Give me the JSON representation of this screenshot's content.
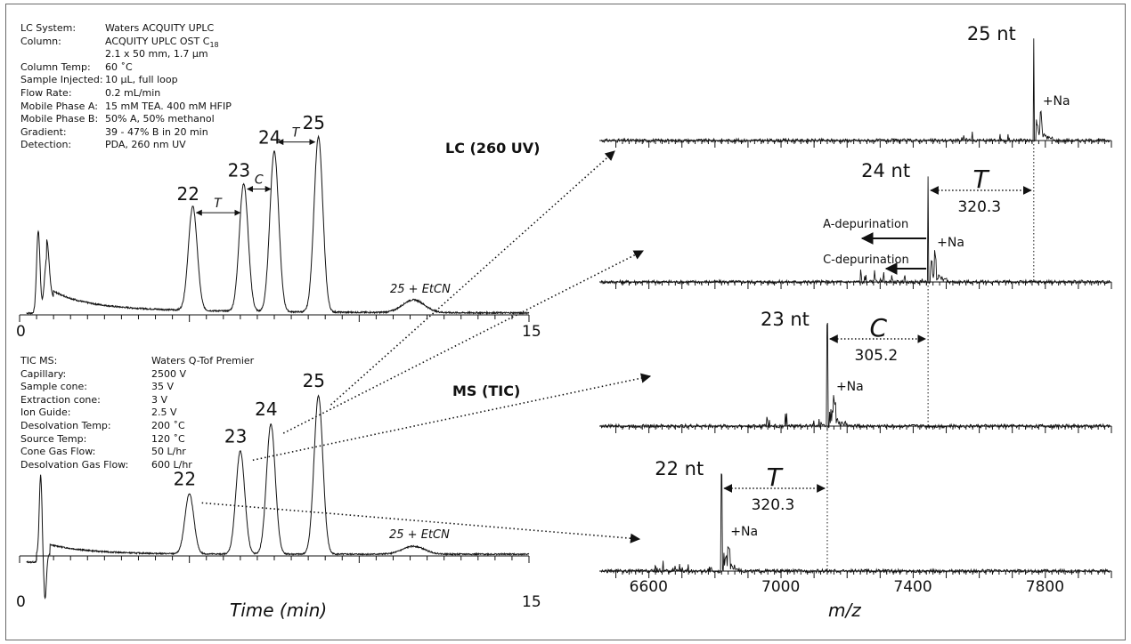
{
  "lc_params": [
    {
      "k": "LC System:",
      "v": "Waters ACQUITY UPLC"
    },
    {
      "k": "Column:",
      "v": "ACQUITY UPLC OST C",
      "sub": "18"
    },
    {
      "k": "",
      "v": "2.1 x 50 mm, 1.7 µm"
    },
    {
      "k": "Column Temp:",
      "v": "60 ˚C"
    },
    {
      "k": "Sample Injected:",
      "v": "10 µL, full loop"
    },
    {
      "k": "Flow Rate:",
      "v": "0.2 mL/min"
    },
    {
      "k": "Mobile Phase A:",
      "v": "15 mM TEA. 400 mM HFIP"
    },
    {
      "k": "Mobile Phase B:",
      "v": "50% A, 50% methanol"
    },
    {
      "k": "Gradient:",
      "v": "39 - 47% B in 20 min"
    },
    {
      "k": "Detection:",
      "v": "PDA, 260 nm UV"
    }
  ],
  "ms_params": [
    {
      "k": "TIC MS:",
      "v": "Waters Q-Tof Premier"
    },
    {
      "k": "Capillary:",
      "v": "2500  V"
    },
    {
      "k": "Sample cone:",
      "v": "35 V"
    },
    {
      "k": "Extraction cone:",
      "v": " 3 V"
    },
    {
      "k": "Ion Guide:",
      "v": "2.5 V"
    },
    {
      "k": "Desolvation Temp:",
      "v": "200 ˚C"
    },
    {
      "k": "Source Temp:",
      "v": "120 ˚C"
    },
    {
      "k": "Cone Gas Flow:",
      "v": " 50 L/hr"
    },
    {
      "k": "Desolvation Gas Flow:",
      "v": "600 L/hr"
    }
  ],
  "lc_title": "LC (260 UV)",
  "ms_title": "MS (TIC)",
  "time_label": "Time (min)",
  "mz_label": "m/z",
  "etcn_label": "25 + EtCN",
  "chart_data": [
    {
      "type": "line",
      "name": "LC (260 UV)",
      "xlabel": "",
      "xlim": [
        0,
        15
      ],
      "tick_labels": [
        "0",
        "15"
      ],
      "minor_tick_step": 0.5,
      "peaks": [
        {
          "label": "22",
          "x": 5.1,
          "height": 0.57
        },
        {
          "label": "23",
          "x": 6.6,
          "height": 0.7
        },
        {
          "label": "24",
          "x": 7.5,
          "height": 0.88
        },
        {
          "label": "25",
          "x": 8.8,
          "height": 0.96
        },
        {
          "label": "25 + EtCN",
          "x": 11.6,
          "height": 0.07
        }
      ],
      "gap_labels": [
        {
          "text": "T",
          "from": "22",
          "to": "23"
        },
        {
          "text": "C",
          "from": "23",
          "to": "24"
        },
        {
          "text": "T",
          "from": "24",
          "to": "25"
        }
      ]
    },
    {
      "type": "line",
      "name": "MS (TIC)",
      "xlabel": "Time (min)",
      "xlim": [
        0,
        15
      ],
      "tick_labels": [
        "0",
        "15"
      ],
      "minor_tick_step": 0.5,
      "peaks": [
        {
          "label": "22",
          "x": 5.0,
          "height": 0.38
        },
        {
          "label": "23",
          "x": 6.5,
          "height": 0.65
        },
        {
          "label": "24",
          "x": 7.4,
          "height": 0.82
        },
        {
          "label": "25",
          "x": 8.8,
          "height": 1.0
        },
        {
          "label": "25 + EtCN",
          "x": 11.6,
          "height": 0.05
        }
      ]
    },
    {
      "type": "line",
      "name": "Mass spectra",
      "xlabel": "m/z",
      "xlim": [
        6450,
        8000
      ],
      "xticks": [
        6600,
        7000,
        7400,
        7800
      ],
      "spectra": [
        {
          "label": "25 nt",
          "mz": 7765,
          "na": "+Na"
        },
        {
          "label": "24 nt",
          "mz": 7445,
          "na": "+Na",
          "gap": {
            "letter": "T",
            "value": "320.3"
          },
          "depurinations": [
            "A-depurination",
            "C-depurination"
          ]
        },
        {
          "label": "23 nt",
          "mz": 7140,
          "na": "+Na",
          "gap": {
            "letter": "C",
            "value": "305.2"
          }
        },
        {
          "label": "22 nt",
          "mz": 6820,
          "na": "+Na",
          "gap": {
            "letter": "T",
            "value": "320.3"
          }
        }
      ]
    }
  ]
}
